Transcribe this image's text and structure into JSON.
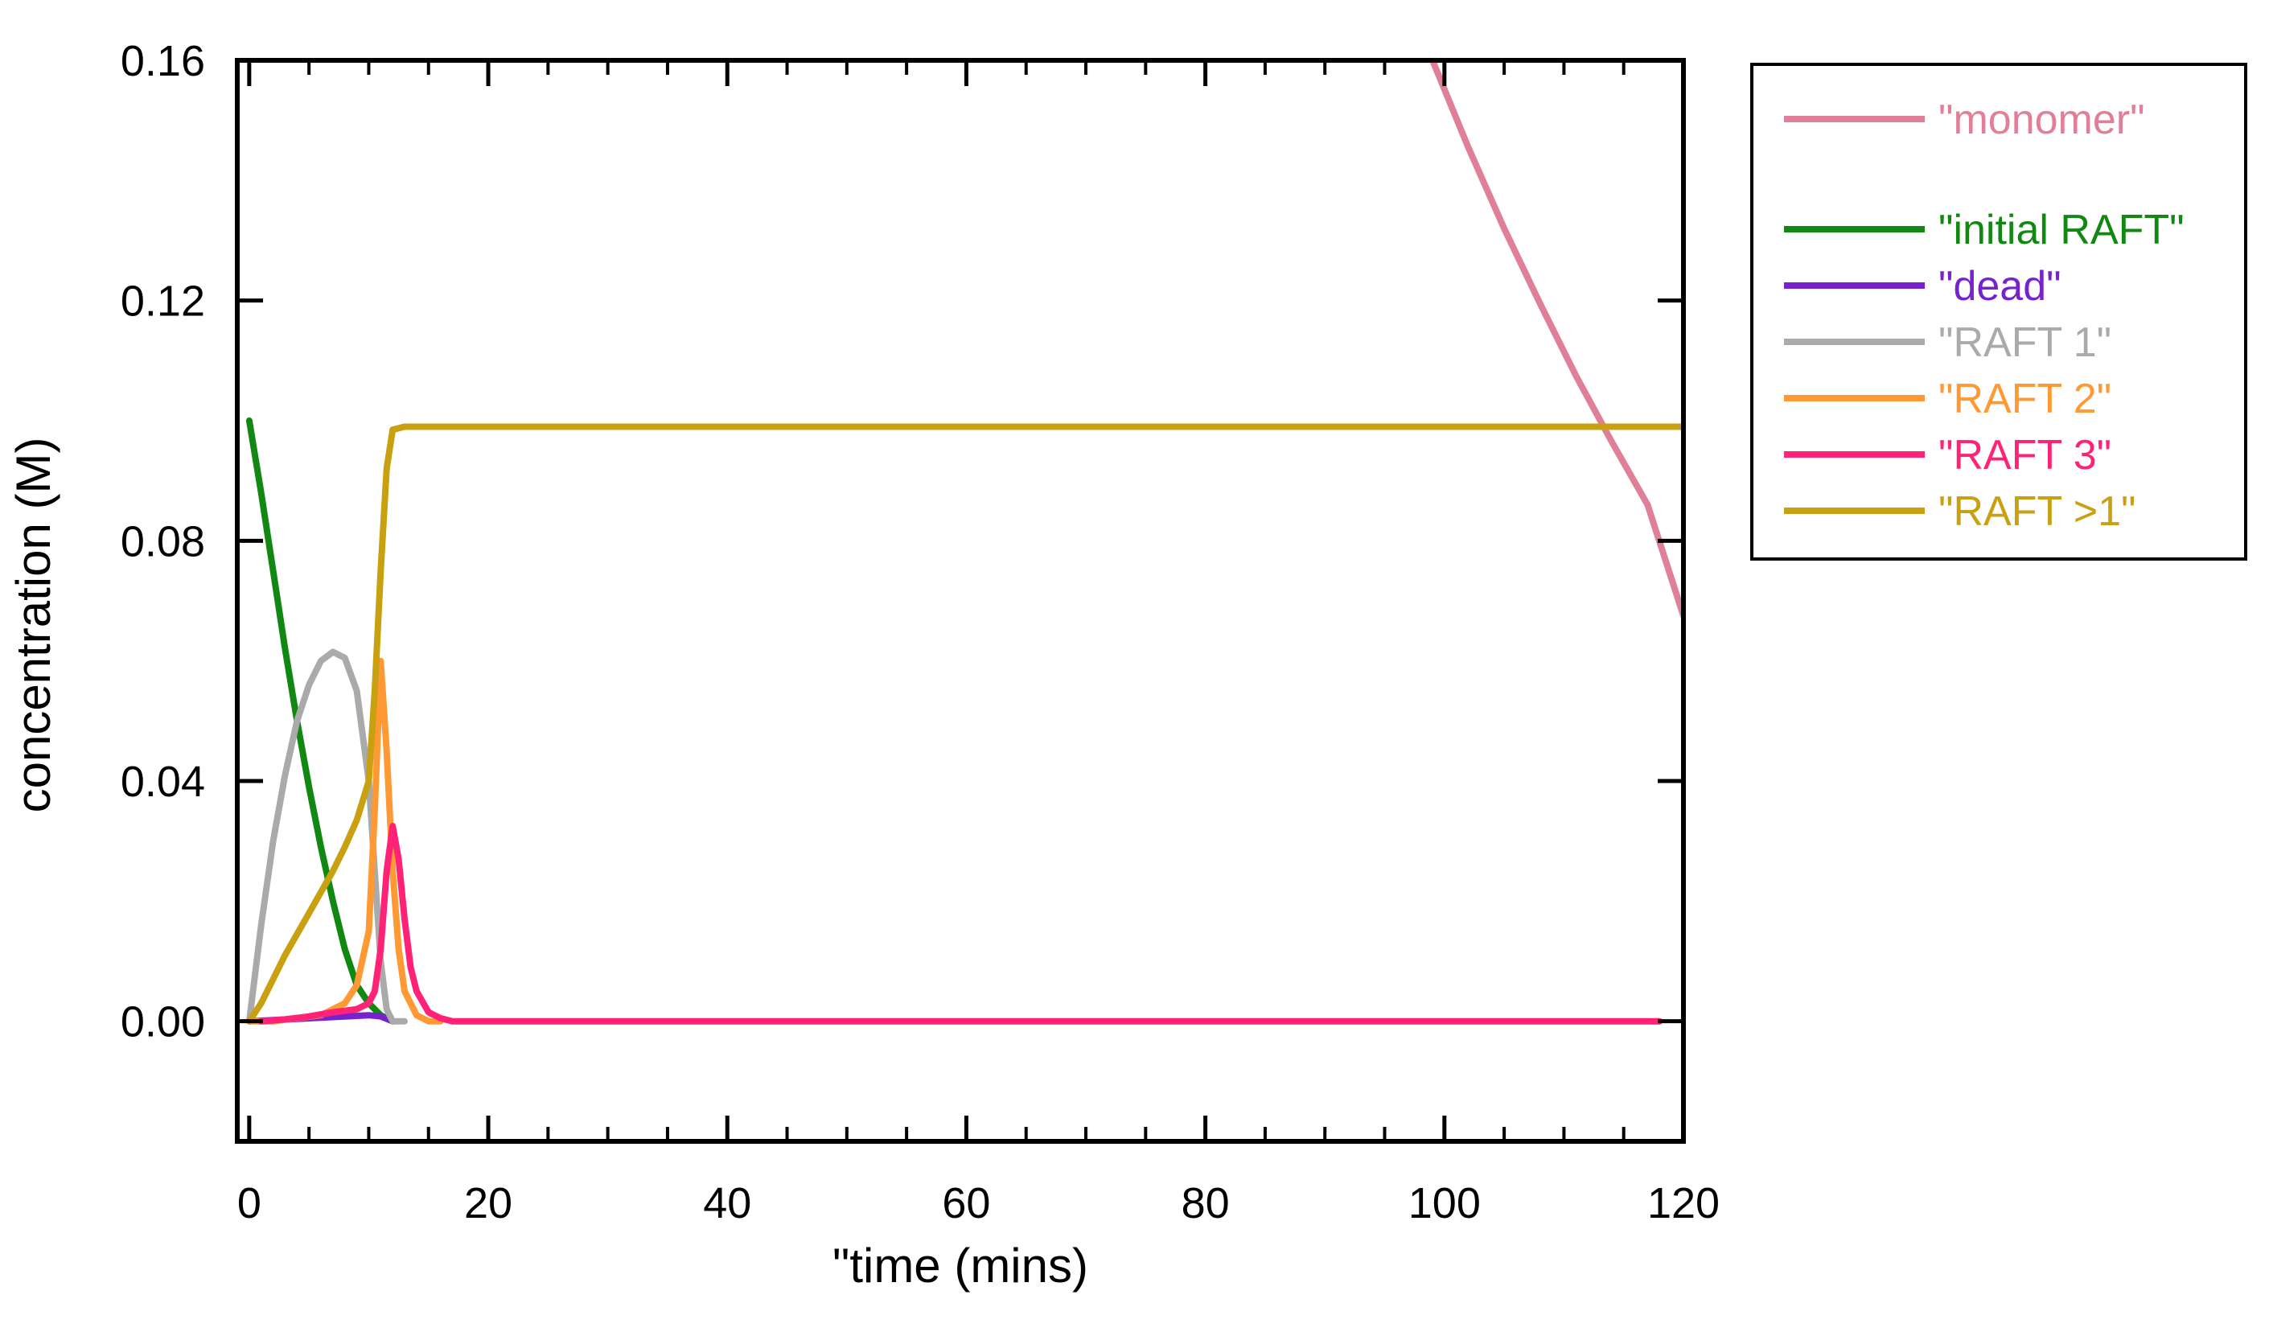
{
  "chart_data": {
    "type": "line",
    "title": "",
    "xlabel": "\"time (mins)",
    "ylabel": "concentration (M)",
    "xlim": [
      -1,
      120
    ],
    "ylim": [
      -0.02,
      0.16
    ],
    "x_ticks": [
      0,
      20,
      40,
      60,
      80,
      100,
      120
    ],
    "x_tick_labels": [
      "0",
      "20",
      "40",
      "60",
      "80",
      "100",
      "120"
    ],
    "y_ticks": [
      0.16,
      0.12,
      0.08,
      0.04,
      0.0
    ],
    "y_tick_labels": [
      "0.16",
      "0.12",
      "0.08",
      "0.04",
      "0.00"
    ],
    "grid": false,
    "legend_position": "right, outside plot, top",
    "series": [
      {
        "name": "\"monomer\"",
        "color": "#e08098",
        "x": [
          99,
          102,
          105,
          108,
          111,
          114,
          117,
          120
        ],
        "y": [
          0.16,
          0.1455,
          0.132,
          0.1195,
          0.1075,
          0.0965,
          0.086,
          0.0675
        ]
      },
      {
        "name": "\"initial RAFT\"",
        "color": "#118811",
        "x": [
          0,
          1,
          2,
          3,
          4,
          5,
          6,
          7,
          8,
          9,
          10,
          11,
          12
        ],
        "y": [
          0.1,
          0.088,
          0.075,
          0.062,
          0.05,
          0.039,
          0.029,
          0.02,
          0.012,
          0.006,
          0.003,
          0.001,
          0.0
        ]
      },
      {
        "name": "\"dead\"",
        "color": "#7722cc",
        "x": [
          0,
          2,
          4,
          6,
          8,
          10,
          11,
          12
        ],
        "y": [
          0.0,
          0.0002,
          0.0004,
          0.0006,
          0.0008,
          0.001,
          0.0008,
          0.0
        ]
      },
      {
        "name": "\"RAFT 1\"",
        "color": "#aaaaaa",
        "x": [
          0,
          1,
          2,
          3,
          4,
          5,
          6,
          7,
          8,
          9,
          10,
          10.5,
          11,
          11.5,
          12,
          13
        ],
        "y": [
          0.0,
          0.016,
          0.03,
          0.041,
          0.05,
          0.056,
          0.06,
          0.0615,
          0.0605,
          0.055,
          0.04,
          0.025,
          0.01,
          0.002,
          0.0,
          0.0
        ]
      },
      {
        "name": "\"RAFT 2\"",
        "color": "#ff9933",
        "x": [
          0,
          2,
          4,
          6,
          8,
          9,
          10,
          10.5,
          11,
          11.5,
          12,
          12.5,
          13,
          14,
          15,
          16
        ],
        "y": [
          0.0,
          0.0,
          0.0005,
          0.001,
          0.003,
          0.006,
          0.015,
          0.035,
          0.06,
          0.045,
          0.025,
          0.012,
          0.005,
          0.001,
          0.0,
          0.0
        ]
      },
      {
        "name": "\"RAFT 3\"",
        "color": "#ff2277",
        "x": [
          1,
          3,
          5,
          7,
          9,
          10,
          10.5,
          11,
          11.5,
          12,
          12.5,
          13,
          13.5,
          14,
          15,
          16,
          17,
          18,
          30,
          60,
          90,
          118
        ],
        "y": [
          0.0,
          0.0003,
          0.0008,
          0.0015,
          0.002,
          0.003,
          0.005,
          0.012,
          0.025,
          0.0325,
          0.027,
          0.017,
          0.009,
          0.005,
          0.0015,
          0.0005,
          0.0,
          0.0,
          0.0,
          0.0,
          0.0,
          0.0
        ]
      },
      {
        "name": "\"RAFT >1\"",
        "color": "#c8a010",
        "x": [
          0,
          1,
          2,
          3,
          4,
          5,
          6,
          7,
          8,
          9,
          10,
          10.5,
          11,
          11.5,
          12,
          13,
          15,
          20,
          60,
          120
        ],
        "y": [
          0.0,
          0.003,
          0.007,
          0.011,
          0.0145,
          0.018,
          0.0215,
          0.025,
          0.029,
          0.0335,
          0.04,
          0.055,
          0.075,
          0.092,
          0.0985,
          0.099,
          0.099,
          0.099,
          0.099,
          0.099
        ]
      }
    ]
  }
}
